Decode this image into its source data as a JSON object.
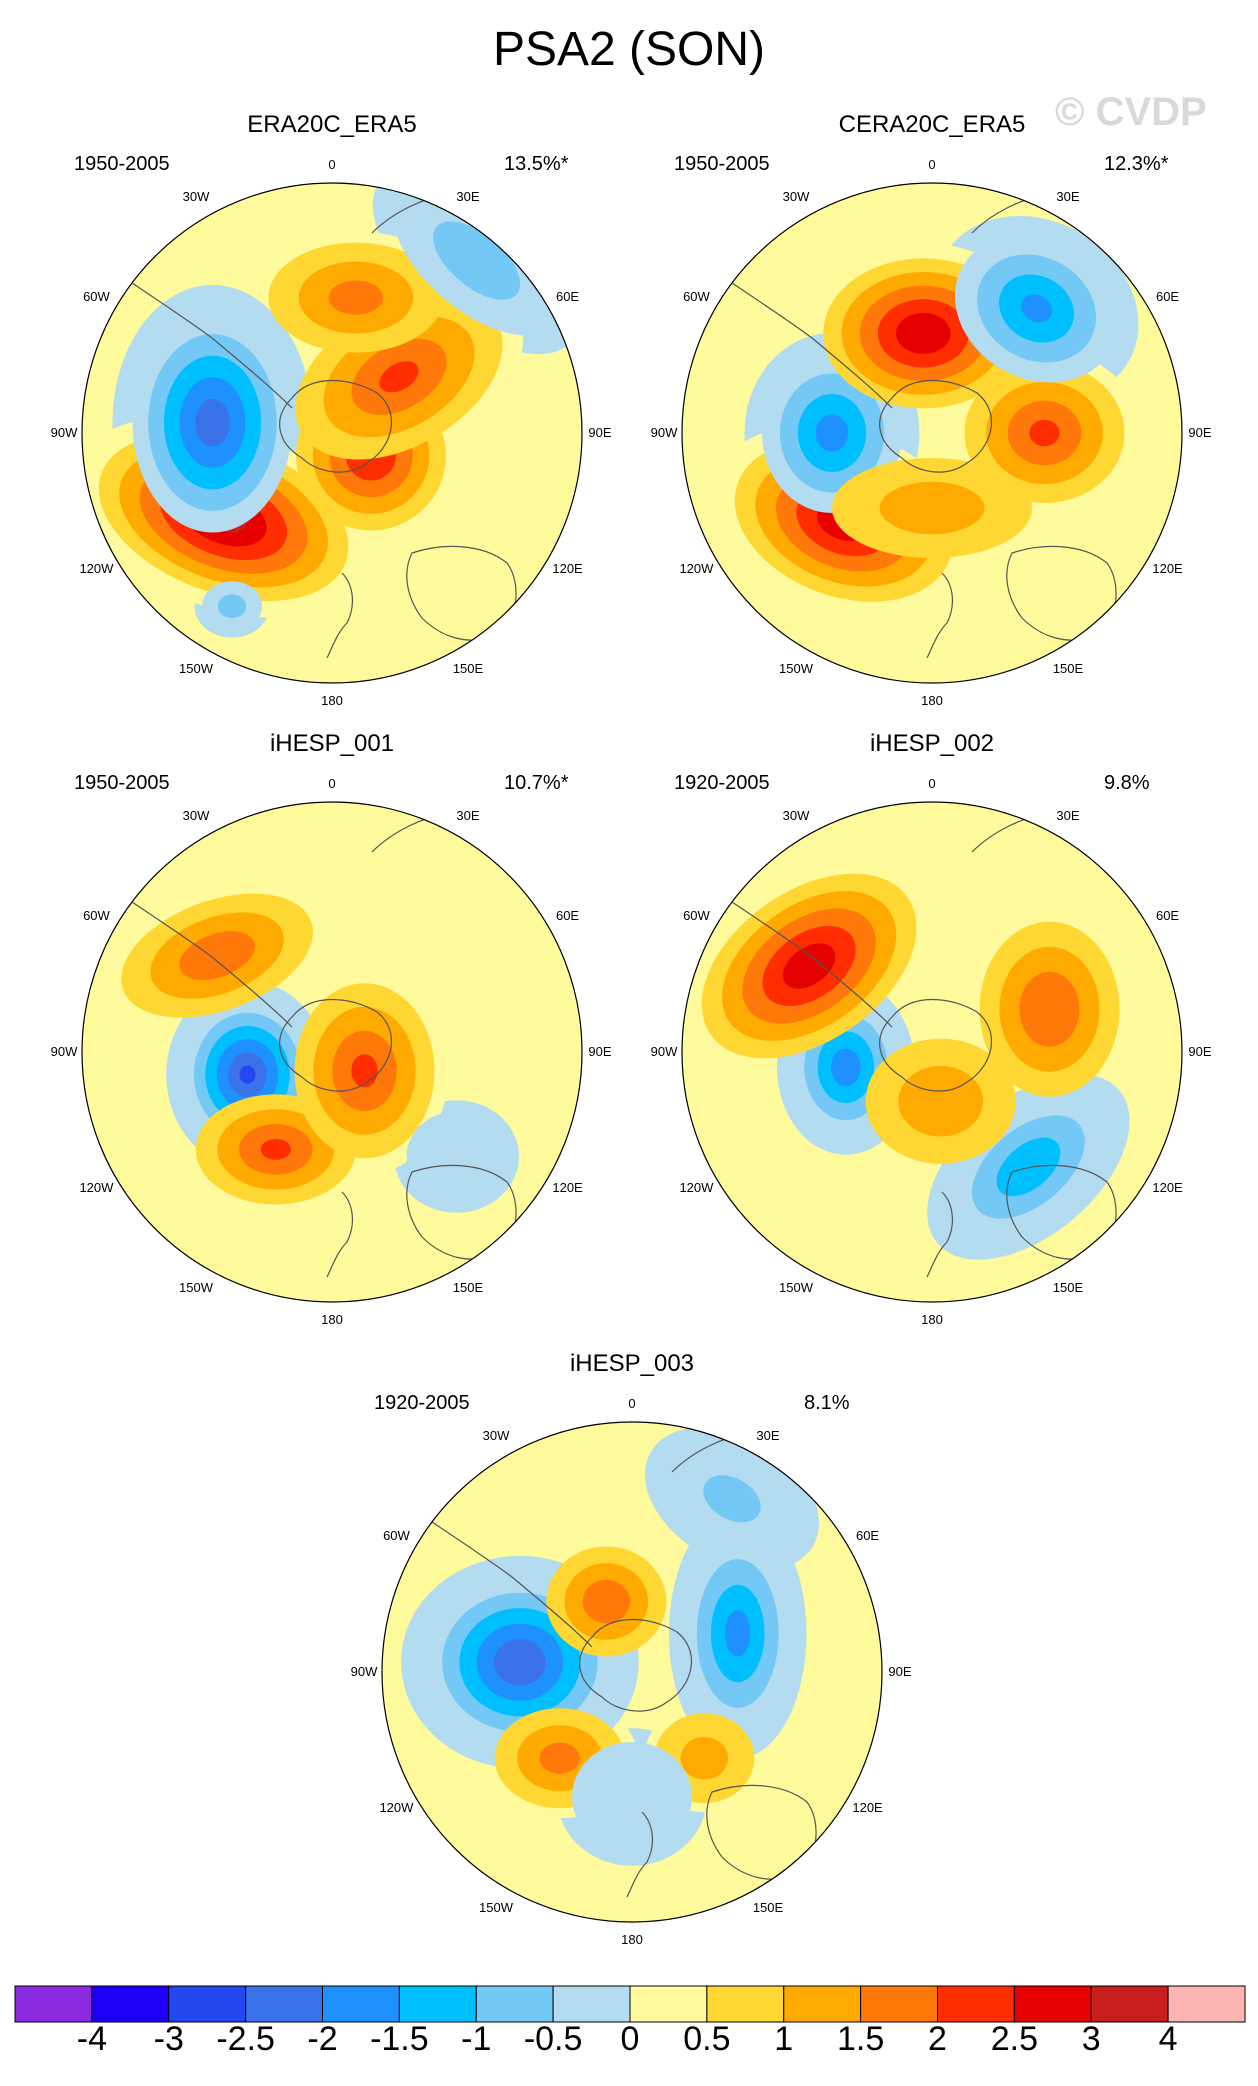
{
  "title": "PSA2 (SON)",
  "watermark": "© CVDP",
  "panels": [
    {
      "name": "ERA20C_ERA5",
      "period": "1950-2005",
      "pct": "13.5%*",
      "blobs": [
        {
          "lon": -52,
          "r": 0.55,
          "v": 3.2,
          "a": 0.52,
          "b": 0.3,
          "rot": 20
        },
        {
          "lon": -95,
          "r": 0.48,
          "v": -2.7,
          "a": 0.32,
          "b": 0.44,
          "rot": 0
        },
        {
          "lon": 60,
          "r": 0.18,
          "v": 2.4,
          "a": 0.3,
          "b": 0.3,
          "rot": 0
        },
        {
          "lon": 130,
          "r": 0.35,
          "v": 2.0,
          "a": 0.45,
          "b": 0.28,
          "rot": -30
        },
        {
          "lon": 170,
          "r": 0.55,
          "v": 1.6,
          "a": 0.35,
          "b": 0.22,
          "rot": 0
        },
        {
          "lon": 140,
          "r": 0.9,
          "v": -1.2,
          "a": 0.4,
          "b": 0.2,
          "rot": 40
        },
        {
          "lon": -30,
          "r": 0.8,
          "v": -1.1,
          "a": 0.12,
          "b": 0.1,
          "rot": 0
        }
      ]
    },
    {
      "name": "CERA20C_ERA5",
      "period": "1950-2005",
      "pct": "12.3%*",
      "blobs": [
        {
          "lon": -45,
          "r": 0.5,
          "v": 2.8,
          "a": 0.45,
          "b": 0.3,
          "rot": 20
        },
        {
          "lon": -90,
          "r": 0.4,
          "v": -2.1,
          "a": 0.28,
          "b": 0.32,
          "rot": 0
        },
        {
          "lon": 90,
          "r": 0.45,
          "v": 2.0,
          "a": 0.32,
          "b": 0.28,
          "rot": 0
        },
        {
          "lon": -175,
          "r": 0.4,
          "v": 2.9,
          "a": 0.4,
          "b": 0.3,
          "rot": 0
        },
        {
          "lon": 140,
          "r": 0.65,
          "v": -2.0,
          "a": 0.34,
          "b": 0.28,
          "rot": 30
        },
        {
          "lon": 0,
          "r": 0.3,
          "v": 1.2,
          "a": 0.4,
          "b": 0.2,
          "rot": 0
        }
      ]
    },
    {
      "name": "iHESP_001",
      "period": "1950-2005",
      "pct": "10.7%*",
      "blobs": [
        {
          "lon": -75,
          "r": 0.35,
          "v": -3.0,
          "a": 0.26,
          "b": 0.3,
          "rot": 0
        },
        {
          "lon": -30,
          "r": 0.45,
          "v": 2.0,
          "a": 0.32,
          "b": 0.22,
          "rot": 0
        },
        {
          "lon": 60,
          "r": 0.15,
          "v": 2.0,
          "a": 0.28,
          "b": 0.35,
          "rot": 0
        },
        {
          "lon": -130,
          "r": 0.6,
          "v": 1.8,
          "a": 0.4,
          "b": 0.22,
          "rot": -20
        },
        {
          "lon": 50,
          "r": 0.65,
          "v": -0.8,
          "a": 0.2,
          "b": 0.18,
          "rot": 0
        }
      ]
    },
    {
      "name": "iHESP_002",
      "period": "1920-2005",
      "pct": "9.8%",
      "blobs": [
        {
          "lon": -80,
          "r": 0.35,
          "v": -2.2,
          "a": 0.22,
          "b": 0.28,
          "rot": 0
        },
        {
          "lon": -125,
          "r": 0.6,
          "v": 2.8,
          "a": 0.48,
          "b": 0.3,
          "rot": -35
        },
        {
          "lon": 40,
          "r": 0.6,
          "v": -1.8,
          "a": 0.38,
          "b": 0.22,
          "rot": -40
        },
        {
          "lon": 110,
          "r": 0.5,
          "v": 1.9,
          "a": 0.28,
          "b": 0.35,
          "rot": 0
        },
        {
          "lon": 10,
          "r": 0.2,
          "v": 1.3,
          "a": 0.3,
          "b": 0.25,
          "rot": 0
        }
      ]
    },
    {
      "name": "iHESP_003",
      "period": "1920-2005",
      "pct": "8.1%",
      "blobs": [
        {
          "lon": -95,
          "r": 0.45,
          "v": -2.9,
          "a": 0.38,
          "b": 0.34,
          "rot": 0
        },
        {
          "lon": 110,
          "r": 0.45,
          "v": -2.1,
          "a": 0.22,
          "b": 0.4,
          "rot": 0
        },
        {
          "lon": -160,
          "r": 0.3,
          "v": 1.8,
          "a": 0.24,
          "b": 0.22,
          "rot": 0
        },
        {
          "lon": -40,
          "r": 0.45,
          "v": 1.6,
          "a": 0.26,
          "b": 0.2,
          "rot": 0
        },
        {
          "lon": 40,
          "r": 0.45,
          "v": 1.1,
          "a": 0.2,
          "b": 0.18,
          "rot": 0
        },
        {
          "lon": 0,
          "r": 0.5,
          "v": -0.9,
          "a": 0.24,
          "b": 0.22,
          "rot": 0
        },
        {
          "lon": 150,
          "r": 0.8,
          "v": -1.0,
          "a": 0.3,
          "b": 0.2,
          "rot": 30
        }
      ]
    }
  ],
  "lon_labels": [
    "0",
    "30E",
    "60E",
    "90E",
    "120E",
    "150E",
    "180",
    "150W",
    "120W",
    "90W",
    "60W",
    "30W"
  ],
  "colorbar": {
    "colors": [
      "#8a2be2",
      "#1e00fa",
      "#2448f0",
      "#3a72ea",
      "#1e90ff",
      "#00bfff",
      "#73c8f5",
      "#b4dcf0",
      "#fffa9b",
      "#ffd732",
      "#ffaa00",
      "#ff780a",
      "#ff2d00",
      "#e60000",
      "#c81e1e",
      "#ffb4b4"
    ],
    "labels": [
      "-4",
      "-3",
      "-2.5",
      "-2",
      "-1.5",
      "-1",
      "-0.5",
      "0",
      "0.5",
      "1",
      "1.5",
      "2",
      "2.5",
      "3",
      "4"
    ],
    "levels": [
      -4,
      -3,
      -2.5,
      -2,
      -1.5,
      -1,
      -0.5,
      0,
      0.5,
      1,
      1.5,
      2,
      2.5,
      3,
      4
    ]
  }
}
